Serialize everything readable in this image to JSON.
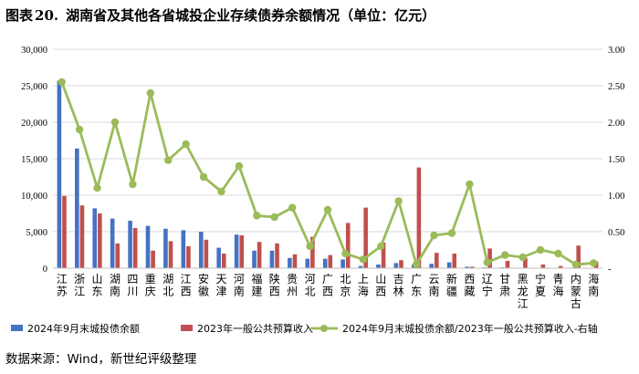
{
  "figure": {
    "label": "图表",
    "number": "20.",
    "title": "湖南省及其他各省城投企业存续债券余额情况（单位：亿元）",
    "source": "数据来源：Wind，新世纪评级整理"
  },
  "colors": {
    "series1": "#4472c4",
    "series2": "#c0504d",
    "series3": "#9bbb59",
    "axis": "#bfbfbf",
    "grid": "#d9d9d9"
  },
  "chart_data": {
    "type": "bar",
    "categories": [
      "江苏",
      "浙江",
      "山东",
      "湖南",
      "四川",
      "重庆",
      "湖北",
      "江西",
      "安徽",
      "天津",
      "河南",
      "福建",
      "陕西",
      "贵州",
      "河北",
      "广西",
      "北京",
      "上海",
      "山西",
      "吉林",
      "广东",
      "云南",
      "新疆",
      "西藏",
      "辽宁",
      "甘肃",
      "黑龙江",
      "宁夏",
      "青海",
      "内蒙古",
      "海南"
    ],
    "series": [
      {
        "name": "2024年9月末城投债余额",
        "axis": "left",
        "values": [
          25700,
          16400,
          8200,
          6800,
          6500,
          5800,
          5400,
          5200,
          5000,
          2800,
          4600,
          2400,
          2400,
          1400,
          1300,
          1300,
          1200,
          300,
          500,
          700,
          500,
          600,
          800,
          200,
          100,
          100,
          40,
          40,
          40,
          80,
          50
        ]
      },
      {
        "name": "2023年一般公共预算收入",
        "axis": "left",
        "values": [
          9900,
          8600,
          7500,
          3400,
          5500,
          2400,
          3700,
          3000,
          3900,
          2000,
          4500,
          3600,
          3400,
          1900,
          4300,
          1800,
          6200,
          8300,
          3500,
          1100,
          13800,
          2100,
          2000,
          200,
          2700,
          1000,
          1400,
          500,
          300,
          3100,
          900
        ]
      },
      {
        "name": "2024年9月末城投债余额/2023年一般公共预算收入-右轴",
        "axis": "right",
        "type": "line",
        "values": [
          2.55,
          1.9,
          1.1,
          2.0,
          1.15,
          2.4,
          1.48,
          1.7,
          1.25,
          1.05,
          1.4,
          0.72,
          0.7,
          0.83,
          0.3,
          0.8,
          0.2,
          0.12,
          0.3,
          0.92,
          0.05,
          0.45,
          0.48,
          1.15,
          0.08,
          0.18,
          0.15,
          0.25,
          0.2,
          0.05,
          0.07
        ]
      }
    ],
    "y_left": {
      "min": 0,
      "max": 30000,
      "ticks": [
        0,
        5000,
        10000,
        15000,
        20000,
        25000,
        30000
      ],
      "tick_labels": [
        "0",
        "5,000",
        "10,000",
        "15,000",
        "20,000",
        "25,000",
        "30,000"
      ]
    },
    "y_right": {
      "min": 0,
      "max": 3.0,
      "ticks": [
        0,
        0.5,
        1.0,
        1.5,
        2.0,
        2.5,
        3.0
      ],
      "tick_labels": [
        "-",
        "0.50",
        "1.00",
        "1.50",
        "2.00",
        "2.50",
        "3.00"
      ]
    },
    "grid": true,
    "legend_position": "bottom"
  }
}
